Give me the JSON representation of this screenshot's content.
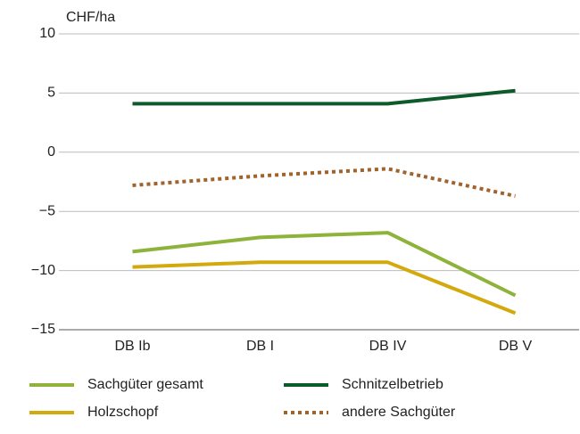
{
  "chart_data": {
    "type": "line",
    "y_label": "CHF/ha",
    "categories": [
      "DB Ib",
      "DB I",
      "DB IV",
      "DB V"
    ],
    "series": [
      {
        "name": "Sachgüter gesamt",
        "color": "#8db33a",
        "style": "solid",
        "values": [
          -8.4,
          -7.2,
          -6.8,
          -12.1
        ]
      },
      {
        "name": "Schnitzelbetrieb",
        "color": "#0f5a2a",
        "style": "solid",
        "values": [
          4.1,
          4.1,
          4.1,
          5.2
        ]
      },
      {
        "name": "Holzschopf",
        "color": "#d4a90e",
        "style": "solid",
        "values": [
          -9.7,
          -9.3,
          -9.3,
          -13.6
        ]
      },
      {
        "name": "andere Sachgüter",
        "color": "#a0632c",
        "style": "dotted",
        "values": [
          -2.8,
          -2.0,
          -1.4,
          -3.7
        ]
      }
    ],
    "ylim": [
      -15,
      10
    ],
    "yticks": [
      {
        "value": -15,
        "label": "−15"
      },
      {
        "value": -10,
        "label": "−10"
      },
      {
        "value": -5,
        "label": "−5"
      },
      0,
      5,
      10
    ],
    "grid": true
  }
}
